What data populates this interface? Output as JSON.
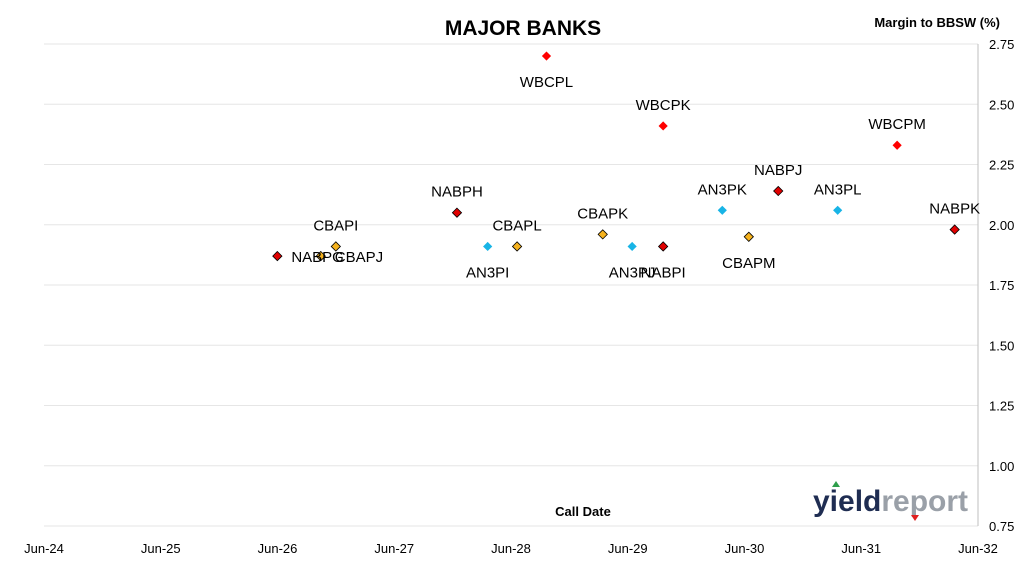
{
  "chart_data": {
    "type": "scatter",
    "title": "MAJOR BANKS",
    "ylabel": "Margin to BBSW (%)",
    "xlabel": "Call Date",
    "ylim": [
      0.75,
      2.75
    ],
    "y_ticks": [
      "0.75",
      "1.00",
      "1.25",
      "1.50",
      "1.75",
      "2.00",
      "2.25",
      "2.50",
      "2.75"
    ],
    "y_tick_values": [
      0.75,
      1.0,
      1.25,
      1.5,
      1.75,
      2.0,
      2.25,
      2.5,
      2.75
    ],
    "xlim": [
      "2024-06-01",
      "2032-06-01"
    ],
    "x_ticks": [
      "Jun-24",
      "Jun-25",
      "Jun-26",
      "Jun-27",
      "Jun-28",
      "Jun-29",
      "Jun-30",
      "Jun-31",
      "Jun-32"
    ],
    "grid": true,
    "colors": {
      "NAB": "#e00000",
      "CBA": "#f5b21e",
      "ANZ": "#18b4e6",
      "WBC": "#ff0000"
    },
    "points": [
      {
        "label": "NABPG",
        "date": "2026-06-01",
        "y": 1.87,
        "bank": "NAB"
      },
      {
        "label": "CBAPJ",
        "date": "2026-10-15",
        "y": 1.87,
        "bank": "CBA"
      },
      {
        "label": "CBAPI",
        "date": "2026-12-01",
        "y": 1.91,
        "bank": "CBA"
      },
      {
        "label": "NABPH",
        "date": "2027-12-15",
        "y": 2.05,
        "bank": "NAB"
      },
      {
        "label": "AN3PI",
        "date": "2028-03-20",
        "y": 1.91,
        "bank": "ANZ"
      },
      {
        "label": "CBAPL",
        "date": "2028-06-20",
        "y": 1.91,
        "bank": "CBA"
      },
      {
        "label": "WBCPL",
        "date": "2028-09-20",
        "y": 2.7,
        "bank": "WBC"
      },
      {
        "label": "CBAPK",
        "date": "2029-03-15",
        "y": 1.96,
        "bank": "CBA"
      },
      {
        "label": "AN3PJ",
        "date": "2029-06-15",
        "y": 1.91,
        "bank": "ANZ"
      },
      {
        "label": "WBCPK",
        "date": "2029-09-20",
        "y": 2.41,
        "bank": "WBC"
      },
      {
        "label": "NABPI",
        "date": "2029-09-20",
        "y": 1.91,
        "bank": "NAB"
      },
      {
        "label": "AN3PK",
        "date": "2030-03-24",
        "y": 2.06,
        "bank": "ANZ"
      },
      {
        "label": "CBAPM",
        "date": "2030-06-15",
        "y": 1.95,
        "bank": "CBA"
      },
      {
        "label": "NABPJ",
        "date": "2030-09-15",
        "y": 2.14,
        "bank": "NAB"
      },
      {
        "label": "AN3PL",
        "date": "2031-03-20",
        "y": 2.06,
        "bank": "ANZ"
      },
      {
        "label": "WBCPM",
        "date": "2031-09-22",
        "y": 2.33,
        "bank": "WBC"
      },
      {
        "label": "NABPK",
        "date": "2032-03-20",
        "y": 1.98,
        "bank": "NAB"
      }
    ]
  },
  "logo": {
    "part1": "yield",
    "part2": "report"
  }
}
